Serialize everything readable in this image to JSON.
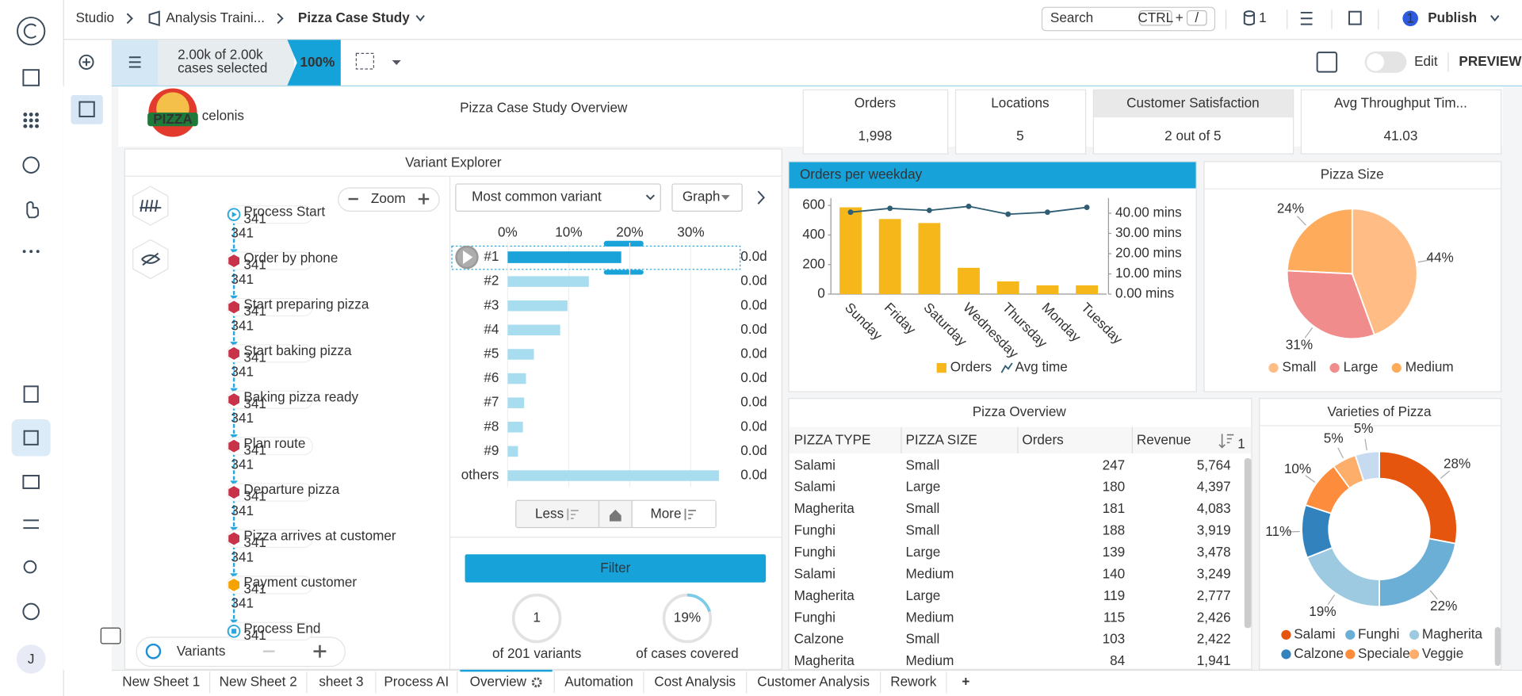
{
  "topbar": {
    "breadcrumbs": [
      "Studio",
      "Analysis Traini...",
      "Pizza Case Study"
    ],
    "search": "Search",
    "shortcut": [
      "CTRL",
      "+",
      "/"
    ],
    "data_count": 1,
    "publish_badge": 1,
    "publish": "Publish"
  },
  "toolbar": {
    "cases": "2.00k of 2.00k",
    "cases_label": "cases selected",
    "percent": "100%",
    "edit": "Edit",
    "preview": "PREVIEW"
  },
  "sidebar": {
    "avatar": "J"
  },
  "dashboard": {
    "title": "Pizza Case Study Overview",
    "logo_badge": "PIZZA",
    "logo_text": "celonis"
  },
  "kpis": [
    {
      "label": "Orders",
      "value": "1,998",
      "color": "#8b1a1a"
    },
    {
      "label": "Locations",
      "value": "5",
      "color": "#4b1c8c"
    },
    {
      "label": "Customer Satisfaction",
      "value": "2 out of 5",
      "color": "#e01b24",
      "label_background": "#e9e9e9"
    },
    {
      "label": "Avg Throughput Tim...",
      "value": "41.03",
      "color": "#3a2ee8"
    }
  ],
  "variant_explorer": {
    "title": "Variant Explorer",
    "zoom": "Zoom",
    "activities": [
      {
        "name": "Process Start",
        "count": 341,
        "color": "#29a8df"
      },
      {
        "name": "Order by phone",
        "count": 341,
        "color": "#c8334a"
      },
      {
        "name": "Start preparing pizza",
        "count": 341,
        "color": "#c8334a"
      },
      {
        "name": "Start baking pizza",
        "count": 341,
        "color": "#c8334a"
      },
      {
        "name": "Baking pizza ready",
        "count": 341,
        "color": "#c8334a"
      },
      {
        "name": "Plan route",
        "count": 341,
        "color": "#c8334a"
      },
      {
        "name": "Departure pizza",
        "count": 341,
        "color": "#c8334a"
      },
      {
        "name": "Pizza arrives at customer",
        "count": 341,
        "color": "#c8334a"
      },
      {
        "name": "Payment customer",
        "count": 341,
        "color": "#f5a300"
      },
      {
        "name": "Process End",
        "count": 341,
        "color": "#29a8df"
      }
    ],
    "edge_counts": [
      341,
      341,
      341,
      341,
      341,
      341,
      341,
      341,
      341
    ],
    "variant_select": "Most common variant",
    "view": "Graph",
    "type": "bar",
    "orientation": "horizontal",
    "xlim": [
      0,
      38
    ],
    "xticks": [
      {
        "value": 0,
        "label": "0%"
      },
      {
        "value": 10,
        "label": "10%"
      },
      {
        "value": 20,
        "label": "20%"
      },
      {
        "value": 30,
        "label": "30%"
      }
    ],
    "variants": [
      "#1",
      "#2",
      "#3",
      "#4",
      "#5",
      "#6",
      "#7",
      "#8",
      "#9",
      "others"
    ],
    "values": [
      18.6,
      13.3,
      9.8,
      8.6,
      4.3,
      3.0,
      2.7,
      2.5,
      1.7,
      34.6
    ],
    "durations": [
      "0.0d",
      "0.0d",
      "0.0d",
      "0.0d",
      "0.0d",
      "0.0d",
      "0.0d",
      "0.0d",
      "0.0d",
      "0.0d"
    ],
    "color": "#a8dcef",
    "selected_color": "#1aa3d9",
    "selected": 0,
    "less": "Less",
    "more": "More",
    "filter": "Filter",
    "variant_count": 1,
    "variant_count_label": "of 201 variants",
    "coverage": "19%",
    "coverage_label": "of cases covered",
    "variants_button": "Variants"
  },
  "orders_per_weekday": {
    "type": "bar",
    "title": "Orders per weekday",
    "categories": [
      "Sunday",
      "Friday",
      "Saturday",
      "Wednesday",
      "Thursday",
      "Monday",
      "Tuesday"
    ],
    "series": [
      {
        "name": "Orders",
        "color": "#f5b719",
        "values": [
          587,
          508,
          481,
          178,
          86,
          59,
          59
        ]
      },
      {
        "name": "Avg time",
        "type": "line",
        "axis": "y2",
        "color": "#2f5d73",
        "values": [
          40.5,
          42.4,
          41.4,
          43.4,
          39.5,
          40.5,
          42.9
        ]
      }
    ],
    "ylim": [
      0,
      650
    ],
    "yticks": [
      0,
      200,
      400,
      600
    ],
    "y2lim": [
      0,
      47.5
    ],
    "y2ticks": [
      {
        "value": 0,
        "label": "0.00 mins"
      },
      {
        "value": 10,
        "label": "10.00 mins"
      },
      {
        "value": 20,
        "label": "20.00 mins"
      },
      {
        "value": 30,
        "label": "30.00 mins"
      },
      {
        "value": 40,
        "label": "40.00 mins"
      }
    ],
    "legend": "bottom"
  },
  "pizza_size": {
    "type": "pie",
    "title": "Pizza Size",
    "categories": [
      "Small",
      "Large",
      "Medium"
    ],
    "values": [
      44,
      31,
      24
    ],
    "value_labels": [
      "44%",
      "31%",
      "24%"
    ],
    "colors": [
      "#ffbd85",
      "#f08c8c",
      "#ffab5c"
    ],
    "legend": "bottom"
  },
  "pizza_overview": {
    "title": "Pizza Overview",
    "columns": [
      "PIZZA TYPE",
      "PIZZA SIZE",
      "Orders",
      "Revenue"
    ],
    "sort_rank": "1",
    "rows": [
      [
        "Salami",
        "Small",
        "247",
        "5,764"
      ],
      [
        "Salami",
        "Large",
        "180",
        "4,397"
      ],
      [
        "Magherita",
        "Small",
        "181",
        "4,083"
      ],
      [
        "Funghi",
        "Small",
        "188",
        "3,919"
      ],
      [
        "Funghi",
        "Large",
        "139",
        "3,478"
      ],
      [
        "Salami",
        "Medium",
        "140",
        "3,249"
      ],
      [
        "Magherita",
        "Large",
        "119",
        "2,777"
      ],
      [
        "Funghi",
        "Medium",
        "115",
        "2,426"
      ],
      [
        "Calzone",
        "Small",
        "103",
        "2,422"
      ],
      [
        "Magherita",
        "Medium",
        "84",
        "1,941"
      ]
    ]
  },
  "varieties": {
    "type": "donut",
    "title": "Varieties of Pizza",
    "categories": [
      "Salami",
      "Funghi",
      "Magherita",
      "Calzone",
      "Speciale",
      "Veggie",
      null
    ],
    "values": [
      28,
      22,
      19,
      11,
      10,
      5,
      5
    ],
    "value_labels": [
      "28%",
      "22%",
      "19%",
      "11%",
      "10%",
      "5%",
      "5%"
    ],
    "colors": [
      "#e6550d",
      "#6baed6",
      "#9ecae1",
      "#3182bd",
      "#fd8d3c",
      "#fdae6b",
      "#c6dbef"
    ],
    "legend": "bottom"
  },
  "tabs": {
    "names": [
      "New Sheet 1",
      "New Sheet 2",
      "sheet 3",
      "Process AI",
      "Overview",
      "Automation",
      "Cost Analysis",
      "Customer Analysis",
      "Rework"
    ],
    "active": 4,
    "add": "+"
  }
}
